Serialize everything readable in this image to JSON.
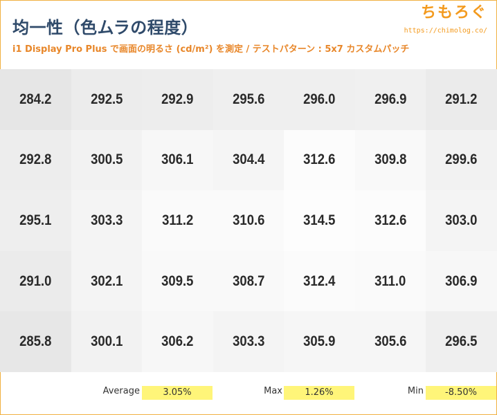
{
  "header": {
    "title": "均一性（色ムラの程度）",
    "subtitle": "i1 Display Pro Plus で画面の明るさ (cd/m²) を測定 / テストパターン : 5x7 カスタムパッチ",
    "logo_text": "ちもろぐ",
    "logo_url": "https://chimolog.co/"
  },
  "chart_data": {
    "type": "heatmap",
    "title": "均一性（色ムラの程度）",
    "subtitle": "i1 Display Pro Plus で画面の明るさ (cd/m²) を測定 / テストパターン : 5x7 カスタムパッチ",
    "rows": 5,
    "columns": 7,
    "values": [
      [
        "284.2",
        "292.5",
        "292.9",
        "295.6",
        "296.0",
        "296.9",
        "291.2"
      ],
      [
        "292.8",
        "300.5",
        "306.1",
        "304.4",
        "312.6",
        "309.8",
        "299.6"
      ],
      [
        "295.1",
        "303.3",
        "311.2",
        "310.6",
        "314.5",
        "312.6",
        "303.0"
      ],
      [
        "291.0",
        "302.1",
        "309.5",
        "308.7",
        "312.4",
        "311.0",
        "306.9"
      ],
      [
        "285.8",
        "300.1",
        "306.2",
        "303.3",
        "305.9",
        "305.6",
        "296.5"
      ]
    ],
    "color_scale": {
      "low": "#e6e6e6",
      "high": "#fdfdfd"
    }
  },
  "stats": {
    "average_label": "Average",
    "average_value": "3.05%",
    "max_label": "Max",
    "max_value": "1.26%",
    "min_label": "Min",
    "min_value": "-8.50%",
    "highlight_color": "#fff579"
  }
}
